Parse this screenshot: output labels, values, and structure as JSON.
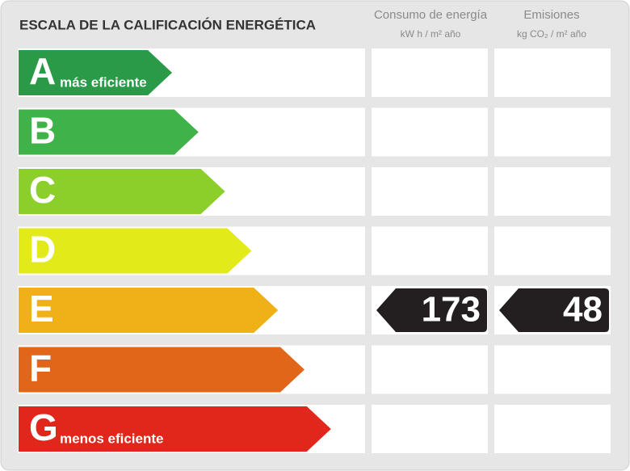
{
  "title": "ESCALA DE LA CALIFICACIÓN ENERGÉTICA",
  "columns": [
    {
      "title": "Consumo de energía",
      "unit": "kW h / m² año"
    },
    {
      "title": "Emisiones",
      "unit": "kg CO₂ / m² año"
    }
  ],
  "rows": [
    {
      "letter": "A",
      "note": "más eficiente",
      "color": "#2a9a48"
    },
    {
      "letter": "B",
      "color": "#3fb34a"
    },
    {
      "letter": "C",
      "color": "#8ccf2a"
    },
    {
      "letter": "D",
      "color": "#e2ea1a"
    },
    {
      "letter": "E",
      "color": "#efb018",
      "consumption": 173,
      "emissions": 48
    },
    {
      "letter": "F",
      "color": "#e26619"
    },
    {
      "letter": "G",
      "note": "menos eficiente",
      "color": "#e1261c"
    }
  ]
}
